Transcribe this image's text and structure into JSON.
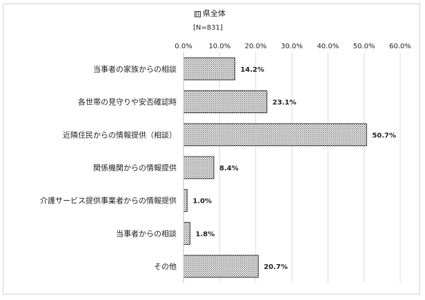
{
  "chart_data": {
    "type": "bar",
    "orientation": "horizontal",
    "legend": {
      "label": "県全体",
      "note": "[N=831]",
      "position": "top-center"
    },
    "categories": [
      "当事者の家族からの相談",
      "各世帯の見守りや安否確認時",
      "近隣住民からの情報提供（相談）",
      "関係機関からの情報提供",
      "介護サービス提供事業者からの情報提供",
      "当事者からの相談",
      "その他"
    ],
    "series": [
      {
        "name": "県全体",
        "values": [
          14.2,
          23.1,
          50.7,
          8.4,
          1.0,
          1.8,
          20.7
        ]
      }
    ],
    "value_labels": [
      "14.2%",
      "23.1%",
      "50.7%",
      "8.4%",
      "1.0%",
      "1.8%",
      "20.7%"
    ],
    "x_ticks": [
      "0.0%",
      "10.0%",
      "20.0%",
      "30.0%",
      "40.0%",
      "50.0%",
      "60.0%"
    ],
    "xlim": [
      0,
      60
    ],
    "x_axis_position": "top",
    "grid": true,
    "bar_pattern": "crosshatch",
    "colors": {
      "bar_stroke": "#333333",
      "grid": "#d9d9d9",
      "pattern_dot": "#444444"
    }
  }
}
